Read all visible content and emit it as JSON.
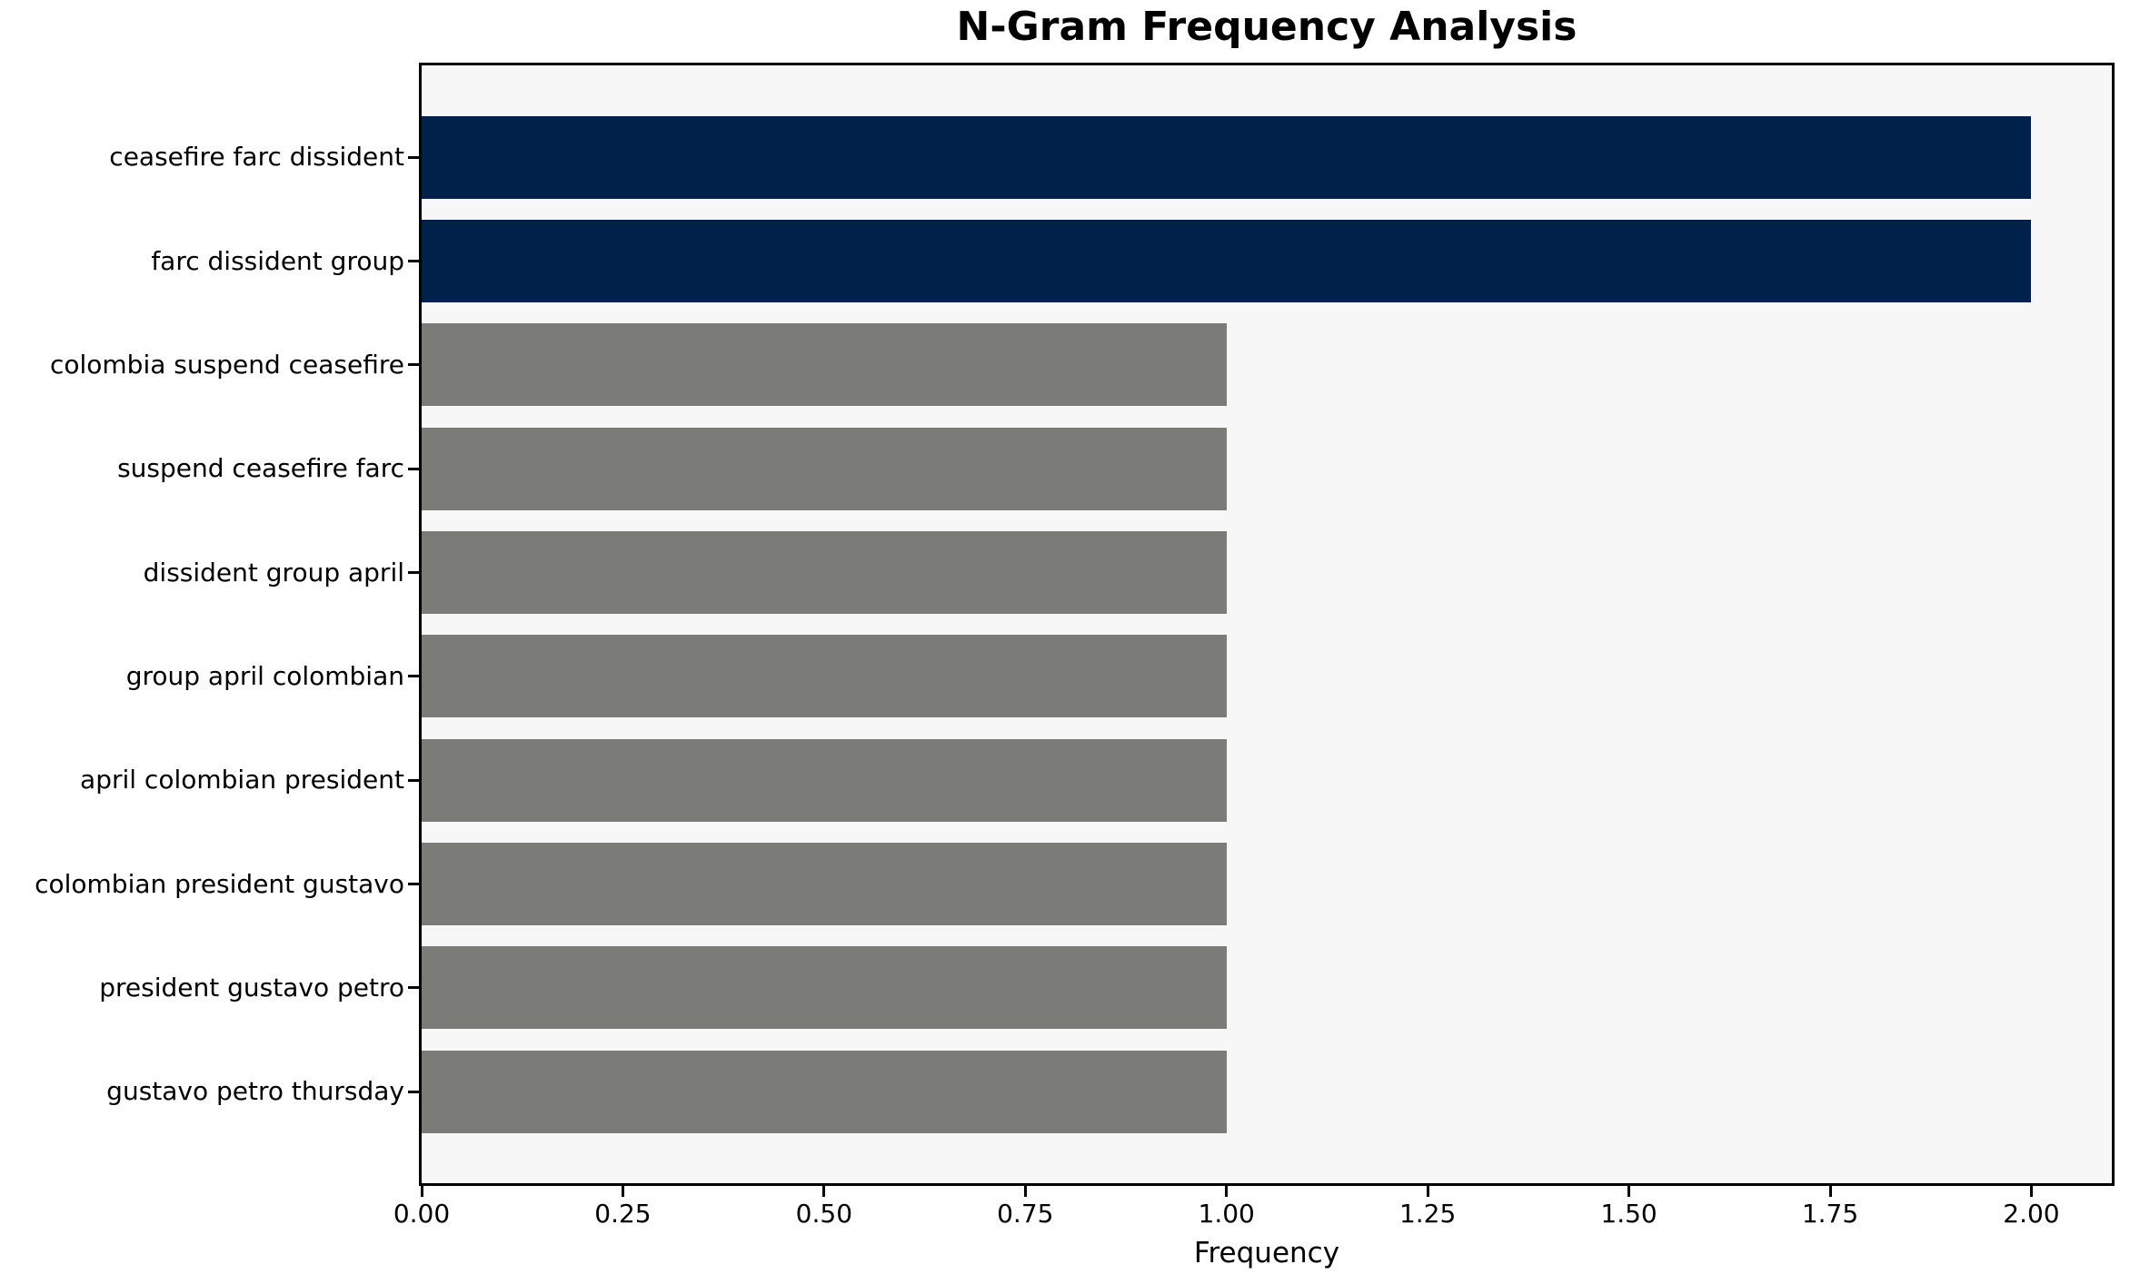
{
  "chart_data": {
    "type": "bar",
    "orientation": "horizontal",
    "title": "N-Gram Frequency Analysis",
    "xlabel": "Frequency",
    "ylabel": "",
    "categories": [
      "ceasefire farc dissident",
      "farc dissident group",
      "colombia suspend ceasefire",
      "suspend ceasefire farc",
      "dissident group april",
      "group april colombian",
      "april colombian president",
      "colombian president gustavo",
      "president gustavo petro",
      "gustavo petro thursday"
    ],
    "values": [
      2,
      2,
      1,
      1,
      1,
      1,
      1,
      1,
      1,
      1
    ],
    "bar_colors": [
      "#00224a",
      "#00224a",
      "#7b7b77",
      "#7b7b77",
      "#7b7b77",
      "#7b7b77",
      "#7b7b77",
      "#7b7b77",
      "#7b7b77",
      "#7b7b77"
    ],
    "xlim": [
      0,
      2.1
    ],
    "xticks": [
      0,
      0.25,
      0.5,
      0.75,
      1.0,
      1.25,
      1.5,
      1.75,
      2.0
    ],
    "xtick_labels": [
      "0.00",
      "0.25",
      "0.50",
      "0.75",
      "1.00",
      "1.25",
      "1.50",
      "1.75",
      "2.00"
    ],
    "grid": false,
    "legend_position": "none",
    "colors": {
      "highlight_bar": "#00224a",
      "default_bar": "#7b7b77",
      "plot_background": "#f7f7f7",
      "figure_background": "#ffffff",
      "axis_and_text": "#000000"
    }
  }
}
